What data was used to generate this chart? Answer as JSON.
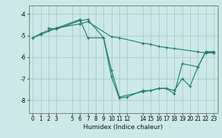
{
  "xlabel": "Humidex (Indice chaleur)",
  "bg_color": "#cce8e8",
  "grid_color": "#aacccc",
  "line_color": "#1a7a6e",
  "xlim": [
    -0.5,
    23.5
  ],
  "ylim": [
    -8.6,
    -3.6
  ],
  "yticks": [
    -8,
    -7,
    -6,
    -5,
    -4
  ],
  "xticks": [
    0,
    1,
    2,
    3,
    5,
    6,
    7,
    8,
    9,
    10,
    11,
    12,
    14,
    15,
    16,
    17,
    18,
    19,
    20,
    21,
    22,
    23
  ],
  "lines": [
    {
      "x": [
        0,
        1,
        2,
        3,
        6,
        7,
        10,
        11,
        14,
        15,
        16,
        17,
        18,
        21,
        22,
        23
      ],
      "y": [
        -5.1,
        -4.9,
        -4.75,
        -4.65,
        -4.45,
        -4.35,
        -5.05,
        -5.1,
        -5.35,
        -5.4,
        -5.5,
        -5.55,
        -5.6,
        -5.75,
        -5.8,
        -5.8
      ]
    },
    {
      "x": [
        2,
        3,
        6,
        7,
        9,
        10,
        11,
        14,
        15,
        16,
        17,
        18,
        19,
        21,
        22,
        23
      ],
      "y": [
        -4.65,
        -4.7,
        -4.3,
        -4.25,
        -5.1,
        -6.6,
        -7.85,
        -7.6,
        -7.55,
        -7.45,
        -7.45,
        -7.7,
        -6.3,
        -6.45,
        -5.75,
        -5.75
      ]
    },
    {
      "x": [
        0,
        1,
        3,
        6,
        7,
        9,
        10,
        11,
        12,
        14,
        15,
        16,
        17,
        18,
        19,
        20,
        21,
        22,
        23
      ],
      "y": [
        -5.1,
        -4.95,
        -4.65,
        -4.25,
        -5.1,
        -5.1,
        -6.9,
        -7.9,
        -7.85,
        -7.55,
        -7.55,
        -7.45,
        -7.45,
        -7.55,
        -7.0,
        -7.35,
        -6.45,
        -5.75,
        -5.75
      ]
    }
  ]
}
